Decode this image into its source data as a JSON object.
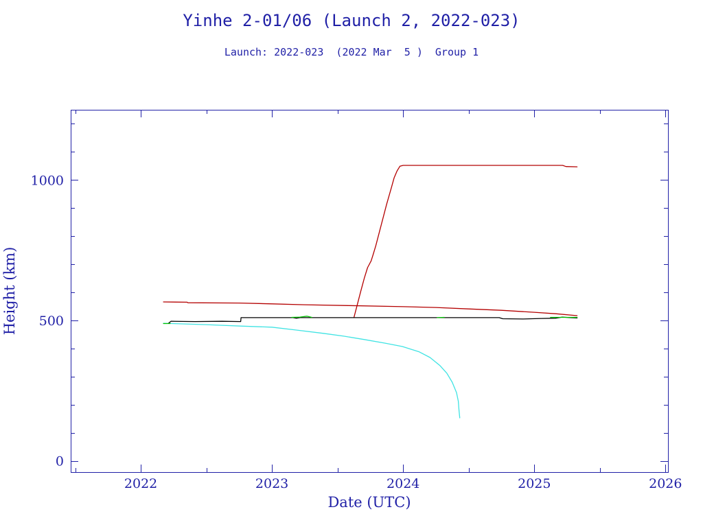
{
  "chart_data": {
    "type": "line",
    "title": "Yinhe 2-01/06 (Launch 2, 2022-023)",
    "subtitle": "Launch: 2022-023  (2022 Mar  5 )  Group 1",
    "xlabel": "Date (UTC)",
    "ylabel": "Height (km)",
    "xlim": [
      "2021-06-20",
      "2026-01-08"
    ],
    "ylim": [
      -40,
      1250
    ],
    "x_ticks": [
      "2022",
      "2023",
      "2024",
      "2025",
      "2026"
    ],
    "y_ticks": [
      0,
      500,
      1000
    ],
    "grid": false,
    "series": [
      {
        "color": "#b40000",
        "points": [
          [
            "2022-03-05",
            566
          ],
          [
            "2022-05-10",
            565
          ],
          [
            "2022-05-12",
            563
          ],
          [
            "2022-10-01",
            562
          ],
          [
            "2023-01-01",
            559
          ],
          [
            "2023-04-01",
            556
          ],
          [
            "2023-08-01",
            553
          ],
          [
            "2024-01-01",
            549
          ],
          [
            "2024-04-01",
            546
          ],
          [
            "2024-07-01",
            541
          ],
          [
            "2024-10-01",
            536
          ],
          [
            "2025-01-01",
            529
          ],
          [
            "2025-03-01",
            524
          ],
          [
            "2025-04-30",
            517
          ]
        ]
      },
      {
        "color": "#b40000",
        "points": [
          [
            "2023-08-17",
            510
          ],
          [
            "2023-08-26",
            554
          ],
          [
            "2023-09-05",
            603
          ],
          [
            "2023-09-15",
            651
          ],
          [
            "2023-09-24",
            688
          ],
          [
            "2023-10-04",
            712
          ],
          [
            "2023-10-09",
            732
          ],
          [
            "2023-10-17",
            766
          ],
          [
            "2023-11-01",
            840
          ],
          [
            "2023-11-16",
            913
          ],
          [
            "2023-11-30",
            976
          ],
          [
            "2023-12-07",
            1008
          ],
          [
            "2023-12-15",
            1032
          ],
          [
            "2023-12-23",
            1049
          ],
          [
            "2024-01-01",
            1052
          ],
          [
            "2025-03-21",
            1052
          ],
          [
            "2025-03-30",
            1048
          ],
          [
            "2025-04-30",
            1047
          ]
        ]
      },
      {
        "color": "#3fe3e3",
        "points": [
          [
            "2022-03-05",
            490
          ],
          [
            "2022-07-02",
            485
          ],
          [
            "2022-10-06",
            480
          ],
          [
            "2023-01-01",
            476
          ],
          [
            "2023-03-08",
            466
          ],
          [
            "2023-05-24",
            454
          ],
          [
            "2023-07-20",
            444
          ],
          [
            "2023-09-15",
            432
          ],
          [
            "2023-11-12",
            419
          ],
          [
            "2023-12-30",
            407
          ],
          [
            "2024-02-15",
            388
          ],
          [
            "2024-03-16",
            368
          ],
          [
            "2024-04-13",
            339
          ],
          [
            "2024-05-02",
            312
          ],
          [
            "2024-05-17",
            280
          ],
          [
            "2024-05-29",
            243
          ],
          [
            "2024-06-03",
            212
          ],
          [
            "2024-06-05",
            180
          ],
          [
            "2024-06-07",
            153
          ]
        ]
      },
      {
        "color": "#000000",
        "points": [
          [
            "2022-03-20",
            491
          ],
          [
            "2022-03-26",
            497
          ],
          [
            "2022-06-01",
            496
          ],
          [
            "2022-08-15",
            497
          ],
          [
            "2022-10-06",
            496
          ],
          [
            "2022-10-07",
            510
          ],
          [
            "2023-03-01",
            510
          ],
          [
            "2023-03-10",
            508
          ],
          [
            "2023-03-20",
            510
          ],
          [
            "2024-09-25",
            510
          ],
          [
            "2024-10-05",
            506
          ],
          [
            "2024-12-01",
            505
          ],
          [
            "2025-01-20",
            507
          ],
          [
            "2025-03-01",
            508
          ],
          [
            "2025-03-20",
            512
          ],
          [
            "2025-04-10",
            510
          ],
          [
            "2025-04-30",
            509
          ]
        ]
      },
      {
        "color": "#00c000",
        "points": [
          [
            "2022-03-05",
            489
          ],
          [
            "2022-03-24",
            489
          ],
          null,
          [
            "2023-02-25",
            511
          ],
          [
            "2023-03-20",
            512
          ],
          [
            "2023-04-08",
            515
          ],
          [
            "2023-04-22",
            511
          ],
          null,
          [
            "2024-04-05",
            510
          ],
          [
            "2024-04-25",
            511
          ],
          null,
          [
            "2025-02-15",
            511
          ],
          [
            "2025-04-30",
            511
          ]
        ]
      }
    ]
  },
  "colors": {
    "text": "#1f1fa6",
    "axis": "#1f1fa6",
    "background": "#ffffff"
  }
}
